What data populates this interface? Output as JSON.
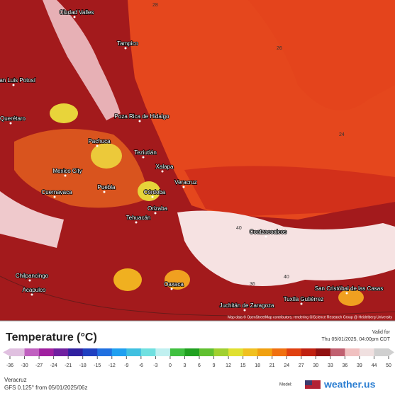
{
  "map": {
    "cities": [
      "Ciudad Valles",
      "Tampico",
      "San Luis Potosí",
      "Querétaro",
      "Poza Rica de Hidalgo",
      "Pachuca",
      "Teziutlán",
      "Xalapa",
      "Mexico City",
      "Puebla",
      "Veracruz",
      "Córdoba",
      "Orizaba",
      "Tehuacán",
      "Cuernavaca",
      "Chilpancingo",
      "Acapulco",
      "Oaxaca",
      "Coatzacoalcos",
      "Juchitán de Zaragoza",
      "Tuxtla Gutiérrez",
      "San Cristóbal de las Casas"
    ],
    "contour_labels": [
      "28",
      "26",
      "24",
      "40",
      "40",
      "36"
    ],
    "attribution": "Map data © OpenStreetMap contributors, rendering GIScience Research Group @ Heidelberg University"
  },
  "header": {
    "title": "Temperature (°C)",
    "valid_label": "Valid for",
    "valid_time": "Thu 05/01/2025, 04:00pm CDT"
  },
  "colorbar": {
    "ticks": [
      -36,
      -30,
      -27,
      -24,
      -21,
      -18,
      -15,
      -12,
      -9,
      -6,
      -3,
      0,
      3,
      6,
      9,
      12,
      15,
      18,
      21,
      24,
      27,
      30,
      33,
      36,
      39,
      44,
      50
    ],
    "colors": [
      "#e0c0e0",
      "#c060c0",
      "#a020a0",
      "#7020a0",
      "#3020a0",
      "#2040c0",
      "#2070e0",
      "#20a0f0",
      "#40c0e0",
      "#70e0e0",
      "#c0f0f0",
      "#40c040",
      "#20a020",
      "#60c030",
      "#a0d030",
      "#e0e030",
      "#f0c020",
      "#f0a010",
      "#f07010",
      "#e04010",
      "#c02010",
      "#901010",
      "#c06070",
      "#f0c0c0",
      "#f0e0e0",
      "#d0d0d0"
    ]
  },
  "footer": {
    "region": "Veracruz",
    "model_run": "GFS 0.125° from 05/01/2025/06z",
    "model_label": "Model:",
    "brand": "weather.us"
  }
}
